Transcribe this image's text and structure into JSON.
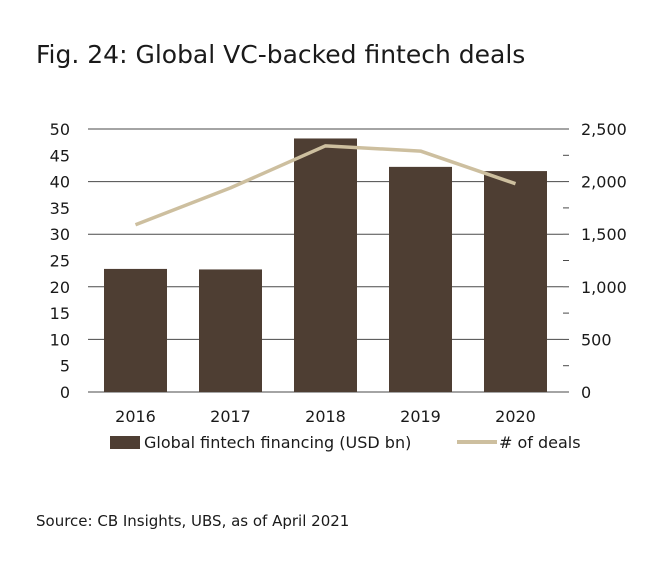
{
  "page": {
    "title": "Fig. 24: Global VC-backed fintech deals",
    "source": "Source: CB Insights, UBS, as of April 2021"
  },
  "colors": {
    "bar": "#4e3e33",
    "line": "#cdbf9f",
    "grid": "#4a4a4a"
  },
  "chart_data": {
    "type": "bar",
    "title": "Fig. 24: Global VC-backed fintech deals",
    "categories": [
      "2016",
      "2017",
      "2018",
      "2019",
      "2020"
    ],
    "series": [
      {
        "name": "Global fintech financing (USD bn)",
        "type": "bar",
        "axis": "left",
        "values": [
          23.4,
          23.3,
          48.2,
          42.8,
          42.0
        ]
      },
      {
        "name": "# of deals",
        "type": "line",
        "axis": "right",
        "values": [
          1590,
          1940,
          2340,
          2290,
          1980
        ]
      }
    ],
    "y_left": {
      "min": 0,
      "max": 50,
      "ticks": [
        0,
        5,
        10,
        15,
        20,
        25,
        30,
        35,
        40,
        45,
        50
      ],
      "tick_labels": [
        "0",
        "5",
        "10",
        "15",
        "20",
        "25",
        "30",
        "35",
        "40",
        "45",
        "50"
      ]
    },
    "y_right": {
      "min": 0,
      "max": 2500,
      "ticks": [
        0,
        500,
        1000,
        1500,
        2000,
        2500
      ],
      "tick_labels": [
        "0",
        "500",
        "1,000",
        "1,500",
        "2,000",
        "2,500"
      ]
    },
    "grid": true,
    "legend_position": "bottom"
  }
}
